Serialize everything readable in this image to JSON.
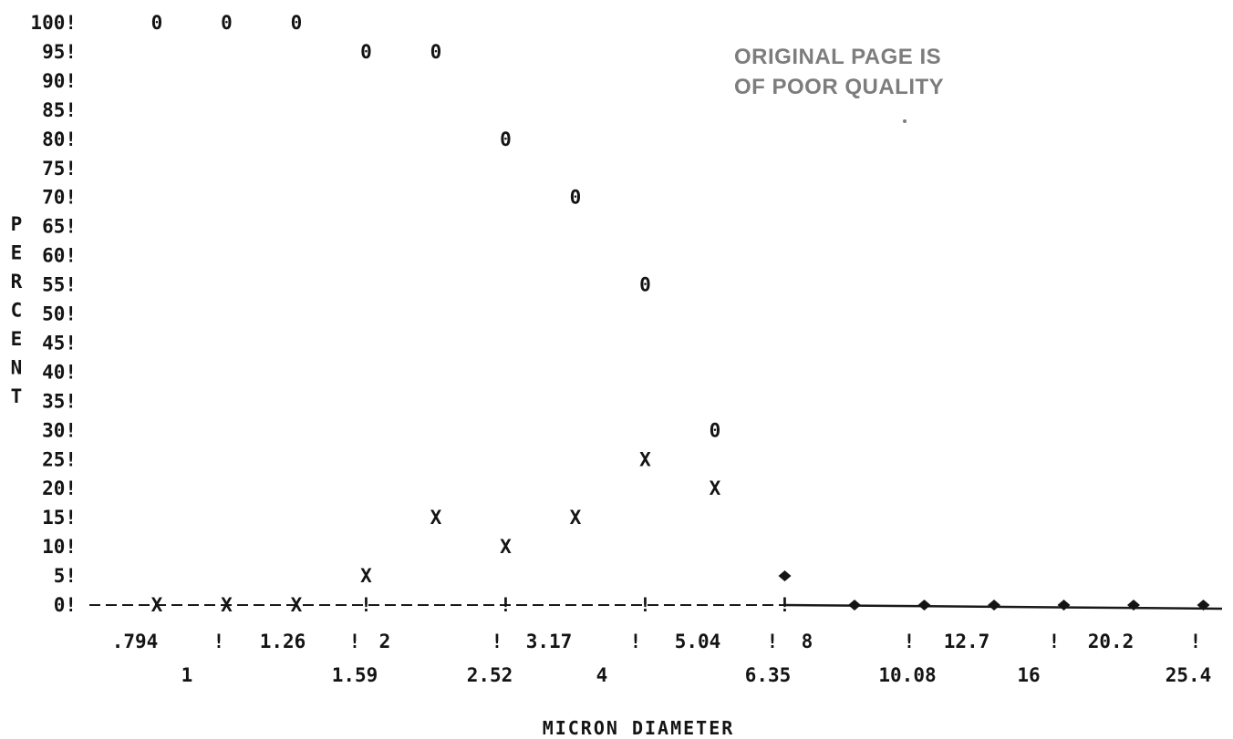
{
  "chart_data": {
    "type": "scatter",
    "ylabel": "PERCENT",
    "xlabel": "MICRON DIAMETER",
    "y_ticks": [
      "100!",
      "95!",
      "90!",
      "85!",
      "80!",
      "75!",
      "70!",
      "65!",
      "60!",
      "55!",
      "50!",
      "45!",
      "40!",
      "35!",
      "30!",
      "25!",
      "20!",
      "15!",
      "10!",
      "5!",
      "0!"
    ],
    "ylim": [
      0,
      100
    ],
    "x_labels_row1": [
      ".794",
      "!",
      "1.26",
      "!",
      "2",
      "!",
      "3.17",
      "!",
      "5.04",
      "!",
      "8",
      "!",
      "12.7",
      "!",
      "20.2",
      "!"
    ],
    "x_labels_row2": [
      "1",
      "1.59",
      "2.52",
      "4",
      "6.35",
      "10.08",
      "16",
      "25.4"
    ],
    "size_bins": [
      ".794",
      "1",
      "1.26",
      "1.59",
      "2",
      "2.52",
      "3.17",
      "4",
      "5.04",
      "6.35",
      "8",
      "10.08",
      "12.7",
      "16",
      "20.2",
      "25.4"
    ],
    "series": [
      {
        "marker": "0",
        "points": [
          {
            "x": ".794",
            "y": 100
          },
          {
            "x": "1",
            "y": 100
          },
          {
            "x": "1.26",
            "y": 100
          },
          {
            "x": "1.59",
            "y": 95
          },
          {
            "x": "2",
            "y": 95
          },
          {
            "x": "2.52",
            "y": 80
          },
          {
            "x": "3.17",
            "y": 70
          },
          {
            "x": "4",
            "y": 55
          },
          {
            "x": "5.04",
            "y": 30
          }
        ]
      },
      {
        "marker": "X",
        "points": [
          {
            "x": ".794",
            "y": 0
          },
          {
            "x": "1",
            "y": 0
          },
          {
            "x": "1.26",
            "y": 0
          },
          {
            "x": "1.59",
            "y": 5
          },
          {
            "x": "2",
            "y": 15
          },
          {
            "x": "2.52",
            "y": 10
          },
          {
            "x": "3.17",
            "y": 15
          },
          {
            "x": "4",
            "y": 25
          },
          {
            "x": "5.04",
            "y": 20
          }
        ]
      },
      {
        "marker": "◆",
        "points": [
          {
            "x": "6.35",
            "y": 5
          },
          {
            "x": "8",
            "y": 0
          },
          {
            "x": "10.08",
            "y": 0
          },
          {
            "x": "12.7",
            "y": 0
          },
          {
            "x": "16",
            "y": 0
          },
          {
            "x": "20.2",
            "y": 0
          },
          {
            "x": "25.4",
            "y": 0
          }
        ]
      }
    ],
    "grid": false,
    "legend": "none"
  },
  "stamp": {
    "line1": "ORIGINAL PAGE IS",
    "line2": "OF POOR QUALITY"
  }
}
